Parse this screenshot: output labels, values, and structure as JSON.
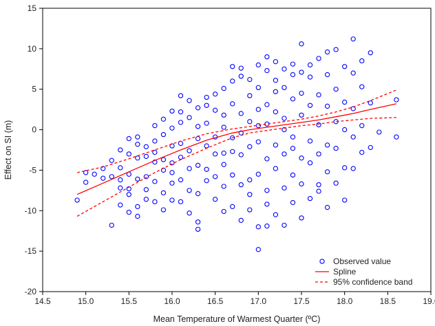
{
  "chart_data": {
    "type": "scatter",
    "title": "",
    "xlabel": "Mean Temperature of Warmest Quarter (ºC)",
    "ylabel": "Effect on SI (m)",
    "xlim": [
      14.5,
      19.0
    ],
    "ylim": [
      -20,
      15
    ],
    "x_ticks": [
      14.5,
      15.0,
      15.5,
      16.0,
      16.5,
      17.0,
      17.5,
      18.0,
      18.5,
      19.0
    ],
    "x_tick_labels": [
      "14.5",
      "15.0",
      "15.5",
      "16.0",
      "16.5",
      "17.0",
      "17.5",
      "18.0",
      "18.5",
      "19.0"
    ],
    "y_ticks": [
      -20,
      -15,
      -10,
      -5,
      0,
      5,
      10,
      15
    ],
    "y_tick_labels": [
      "-20",
      "-15",
      "-10",
      "-5",
      "0",
      "5",
      "10",
      "15"
    ],
    "grid": false,
    "legend_position": "bottom-right",
    "series": [
      {
        "name": "Observed value",
        "kind": "scatter",
        "marker": "open-circle",
        "color": "#0000ff",
        "x_values": [
          14.9,
          15.0,
          15.0,
          15.1,
          15.2,
          15.2,
          15.3,
          15.3,
          15.3,
          15.4,
          15.4,
          15.4,
          15.4,
          15.4,
          15.5,
          15.5,
          15.5,
          15.5,
          15.5,
          15.5,
          15.6,
          15.6,
          15.6,
          15.6,
          15.6,
          15.6,
          15.7,
          15.7,
          15.7,
          15.7,
          15.7,
          15.8,
          15.8,
          15.8,
          15.8,
          15.8,
          15.8,
          15.9,
          15.9,
          15.9,
          15.9,
          15.9,
          15.9,
          16.0,
          16.0,
          16.0,
          16.0,
          16.0,
          16.0,
          16.0,
          16.1,
          16.1,
          16.1,
          16.1,
          16.1,
          16.1,
          16.1,
          16.2,
          16.2,
          16.2,
          16.2,
          16.2,
          16.2,
          16.3,
          16.3,
          16.3,
          16.3,
          16.3,
          16.3,
          16.3,
          16.4,
          16.4,
          16.4,
          16.4,
          16.4,
          16.4,
          16.5,
          16.5,
          16.5,
          16.5,
          16.5,
          16.5,
          16.6,
          16.6,
          16.6,
          16.6,
          16.6,
          16.6,
          16.6,
          16.7,
          16.7,
          16.7,
          16.7,
          16.7,
          16.7,
          16.7,
          16.8,
          16.8,
          16.8,
          16.8,
          16.8,
          16.8,
          16.8,
          16.9,
          16.9,
          16.9,
          16.9,
          16.9,
          16.9,
          16.9,
          17.0,
          17.0,
          17.0,
          17.0,
          17.0,
          17.0,
          17.0,
          17.0,
          17.1,
          17.1,
          17.1,
          17.1,
          17.1,
          17.1,
          17.1,
          17.1,
          17.2,
          17.2,
          17.2,
          17.2,
          17.2,
          17.2,
          17.2,
          17.3,
          17.3,
          17.3,
          17.3,
          17.3,
          17.3,
          17.3,
          17.4,
          17.4,
          17.4,
          17.4,
          17.4,
          17.4,
          17.4,
          17.5,
          17.5,
          17.5,
          17.5,
          17.5,
          17.5,
          17.5,
          17.6,
          17.6,
          17.6,
          17.6,
          17.6,
          17.6,
          17.7,
          17.7,
          17.7,
          17.7,
          17.7,
          17.7,
          17.8,
          17.8,
          17.8,
          17.8,
          17.8,
          17.8,
          17.9,
          17.9,
          17.9,
          17.9,
          17.9,
          18.0,
          18.0,
          18.0,
          18.0,
          18.0,
          18.1,
          18.1,
          18.1,
          18.1,
          18.1,
          18.2,
          18.2,
          18.2,
          18.2,
          18.3,
          18.3,
          18.3,
          18.4,
          18.6,
          18.6
        ],
        "y_values": [
          -8.7,
          -5.3,
          -6.5,
          -5.5,
          -4.8,
          -6.0,
          -11.8,
          -3.8,
          -5.8,
          -9.3,
          -7.2,
          -4.7,
          -2.5,
          -6.2,
          -10.2,
          -8.0,
          -3.0,
          -1.1,
          -5.5,
          -7.3,
          -9.5,
          -6.1,
          -1.8,
          -3.5,
          -0.9,
          -10.7,
          -5.8,
          -3.3,
          -8.6,
          -2.1,
          -7.4,
          -6.4,
          -4.0,
          -1.4,
          -8.9,
          0.5,
          -2.8,
          -5.0,
          -0.6,
          -7.8,
          1.3,
          -3.7,
          -9.9,
          -8.7,
          -2.0,
          -5.3,
          0.2,
          2.3,
          -4.1,
          -6.6,
          -8.9,
          4.2,
          -1.7,
          -3.4,
          2.2,
          -6.2,
          0.9,
          -10.3,
          -4.8,
          1.5,
          -2.6,
          3.6,
          -7.5,
          -11.4,
          -12.3,
          -1.1,
          2.7,
          -4.4,
          0.4,
          -7.9,
          -6.3,
          3.0,
          -2.0,
          4.0,
          -4.9,
          0.8,
          -8.6,
          -3.0,
          2.4,
          -5.8,
          4.4,
          -0.9,
          -10.1,
          -7.0,
          1.8,
          -2.9,
          5.1,
          -4.3,
          0.3,
          7.8,
          -9.5,
          -5.6,
          3.2,
          -1.0,
          6.0,
          -2.7,
          -11.2,
          6.6,
          -6.8,
          2.0,
          -3.1,
          7.6,
          -0.4,
          -8.0,
          4.2,
          -6.2,
          1.0,
          -9.9,
          6.2,
          -2.1,
          -14.8,
          -12.0,
          8.0,
          2.5,
          -5.5,
          5.2,
          -1.5,
          0.5,
          -11.9,
          9.0,
          7.3,
          -7.5,
          3.1,
          -3.6,
          0.7,
          -9.2,
          -10.5,
          8.4,
          6.1,
          -4.8,
          2.2,
          -1.9,
          4.7,
          -11.8,
          7.5,
          -7.2,
          0.0,
          -3.0,
          5.2,
          1.4,
          -9.0,
          8.1,
          -5.6,
          3.8,
          -2.3,
          6.8,
          -0.9,
          -10.9,
          10.6,
          -6.7,
          4.5,
          -3.5,
          7.1,
          1.8,
          -8.5,
          6.5,
          -4.1,
          3.0,
          -1.4,
          8.0,
          -6.8,
          8.8,
          -3.0,
          4.3,
          0.6,
          -7.6,
          9.6,
          -5.2,
          2.9,
          -1.9,
          6.8,
          -9.6,
          9.9,
          -2.3,
          5.0,
          1.0,
          -6.6,
          7.8,
          -4.7,
          -8.7,
          3.4,
          0.0,
          11.2,
          7.0,
          -4.8,
          2.6,
          -0.9,
          8.5,
          -2.8,
          5.3,
          0.5,
          9.5,
          3.3,
          -2.2,
          -0.3,
          3.7,
          -0.9
        ]
      },
      {
        "name": "Spline",
        "kind": "line",
        "style": "solid",
        "color": "#ff0000",
        "x_values": [
          14.9,
          15.2,
          15.5,
          15.8,
          16.1,
          16.4,
          16.7,
          16.9,
          17.1,
          17.3,
          17.5,
          17.7,
          17.9,
          18.1,
          18.3,
          18.6
        ],
        "y_values": [
          -8.0,
          -6.6,
          -5.2,
          -3.8,
          -2.5,
          -1.3,
          -0.4,
          0.0,
          0.3,
          0.6,
          0.9,
          1.2,
          1.6,
          2.0,
          2.5,
          3.2
        ]
      },
      {
        "name": "95% confidence band",
        "kind": "line",
        "style": "dashed",
        "color": "#ff0000",
        "x_values": [
          14.9,
          15.2,
          15.5,
          15.8,
          16.1,
          16.4,
          16.7,
          16.9,
          17.1,
          17.3,
          17.5,
          17.7,
          17.9,
          18.1,
          18.3,
          18.6
        ],
        "y_values": [
          -5.3,
          -4.6,
          -3.6,
          -2.5,
          -1.4,
          -0.5,
          0.1,
          0.4,
          0.7,
          1.0,
          1.3,
          1.7,
          2.2,
          2.8,
          3.6,
          4.9
        ]
      },
      {
        "name": "",
        "kind": "line",
        "style": "dashed",
        "color": "#ff0000",
        "x_values": [
          14.9,
          15.2,
          15.5,
          15.8,
          16.1,
          16.4,
          16.7,
          16.9,
          17.1,
          17.3,
          17.5,
          17.7,
          17.9,
          18.1,
          18.3,
          18.6
        ],
        "y_values": [
          -10.7,
          -8.9,
          -7.1,
          -5.3,
          -3.7,
          -2.3,
          -1.0,
          -0.4,
          -0.1,
          0.2,
          0.5,
          0.7,
          1.0,
          1.2,
          1.4,
          1.5
        ]
      }
    ],
    "legend": [
      {
        "label": "Observed value",
        "kind": "scatter"
      },
      {
        "label": "Spline",
        "kind": "line"
      },
      {
        "label": "95% confidence band",
        "kind": "dashed"
      }
    ]
  }
}
